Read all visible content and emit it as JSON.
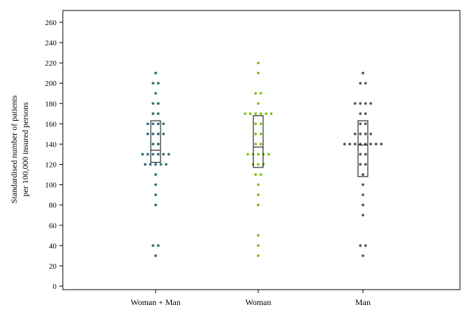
{
  "chart_data": {
    "type": "scatter",
    "subtype": "dot-strip-with-box",
    "title": "",
    "xlabel": "",
    "ylabel_lines": [
      "Standardised number of patients",
      "per 100,000 insured persons"
    ],
    "ylim": [
      0,
      270
    ],
    "yticks": [
      0,
      20,
      40,
      60,
      80,
      100,
      120,
      140,
      160,
      180,
      200,
      220,
      240,
      260
    ],
    "grid": false,
    "legend": "none",
    "categories": [
      "Woman + Man",
      "Woman",
      "Man"
    ],
    "series": [
      {
        "category": "Woman + Man",
        "color": "#2f6f73",
        "values": [
          30,
          40,
          40,
          80,
          90,
          100,
          110,
          120,
          120,
          120,
          120,
          120,
          130,
          130,
          130,
          130,
          130,
          130,
          140,
          140,
          150,
          150,
          150,
          150,
          160,
          160,
          160,
          160,
          170,
          170,
          180,
          180,
          190,
          200,
          200,
          210
        ],
        "box": {
          "q1": 122,
          "median": 134,
          "q3": 163
        }
      },
      {
        "category": "Woman",
        "color": "#7fbf1e",
        "values": [
          30,
          40,
          50,
          80,
          90,
          100,
          110,
          110,
          120,
          120,
          120,
          130,
          130,
          130,
          130,
          130,
          140,
          140,
          150,
          150,
          160,
          160,
          170,
          170,
          170,
          170,
          170,
          170,
          180,
          190,
          190,
          210,
          220
        ],
        "box": {
          "q1": 117,
          "median": 137,
          "q3": 168
        }
      },
      {
        "category": "Man",
        "color": "#555555",
        "values": [
          30,
          40,
          40,
          70,
          80,
          90,
          100,
          110,
          120,
          120,
          130,
          130,
          140,
          140,
          140,
          140,
          140,
          140,
          140,
          140,
          150,
          150,
          150,
          150,
          160,
          160,
          170,
          170,
          180,
          180,
          180,
          180,
          200,
          200,
          210
        ],
        "box": {
          "q1": 108,
          "median": 139,
          "q3": 163
        }
      }
    ]
  }
}
